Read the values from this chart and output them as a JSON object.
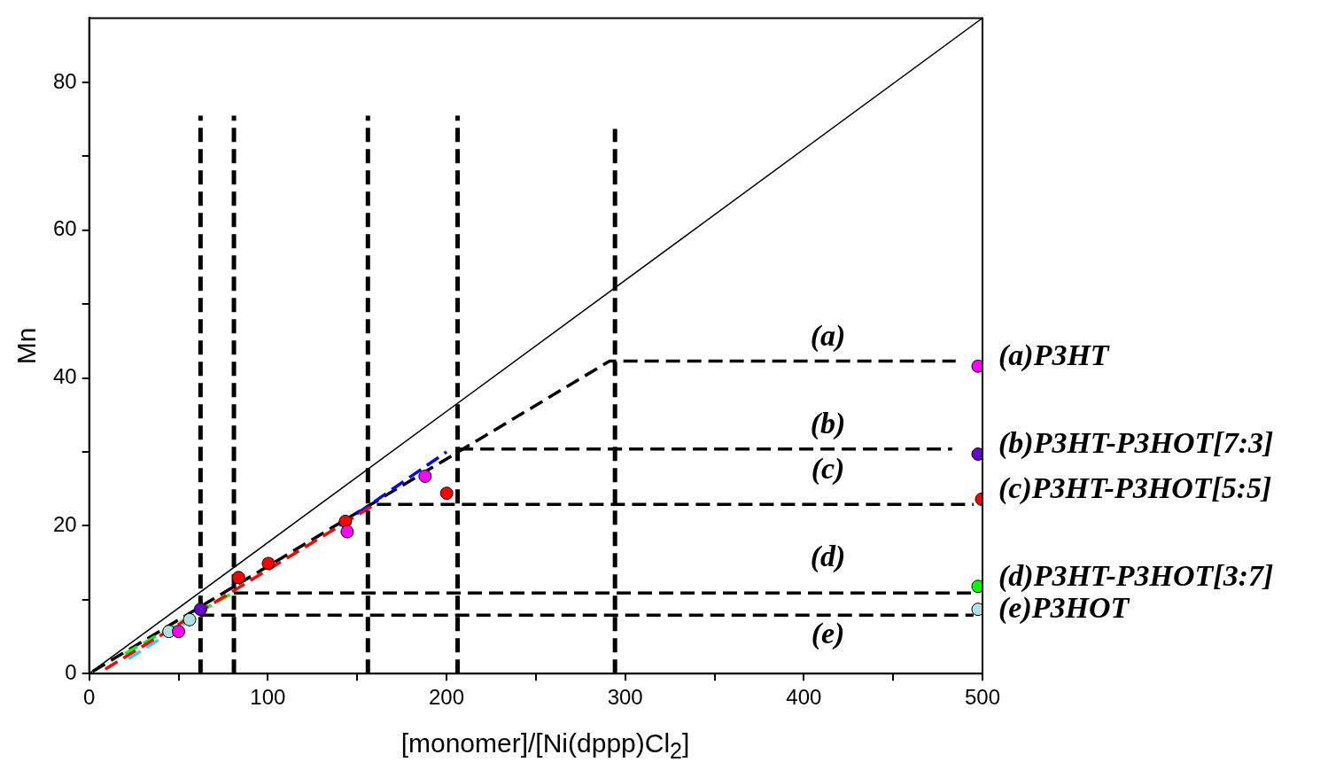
{
  "chart_data": {
    "type": "scatter",
    "xlabel": "[monomer]/[Ni(dppp)Cl$_{2}$]",
    "ylabel": "Mn",
    "xlim": [
      0,
      500
    ],
    "ylim": [
      0,
      88.7
    ],
    "xticks": [
      0,
      {
        "value": 50,
        "label": null
      },
      100,
      {
        "value": 150,
        "label": null
      },
      200,
      {
        "value": 250,
        "label": null
      },
      300,
      {
        "value": 350,
        "label": null
      },
      400,
      {
        "value": 450,
        "label": null
      },
      500
    ],
    "yticks": [
      0,
      {
        "value": 10,
        "label": null
      },
      20,
      {
        "value": 30,
        "label": null
      },
      40,
      {
        "value": 50,
        "label": null
      },
      60,
      {
        "value": 70,
        "label": null
      },
      80
    ],
    "grid": false,
    "legend": false,
    "marker": "circle",
    "series": [
      {
        "type": "line",
        "color": "#000000",
        "line_style": "solid",
        "marker": "none",
        "x": [
          0,
          500
        ],
        "values": [
          0,
          88.7
        ]
      },
      {
        "type": "line",
        "color": "#000000",
        "line_style": "dashed",
        "marker": "none",
        "x": [
          62.3,
          62.3
        ],
        "values": [
          0,
          75.5
        ]
      },
      {
        "type": "line",
        "color": "#000000",
        "line_style": "dashed",
        "marker": "none",
        "x": [
          81,
          81
        ],
        "values": [
          0,
          75.5
        ]
      },
      {
        "type": "line",
        "color": "#000000",
        "line_style": "dashed",
        "marker": "none",
        "x": [
          156,
          156
        ],
        "values": [
          0,
          75.5
        ]
      },
      {
        "type": "line",
        "color": "#000000",
        "line_style": "dashed",
        "marker": "none",
        "x": [
          206.2,
          206.2
        ],
        "values": [
          0,
          75.5
        ]
      },
      {
        "type": "line",
        "color": "#000000",
        "line_style": "dashed",
        "marker": "none",
        "x": [
          294.3,
          294.3
        ],
        "values": [
          0,
          73.7
        ]
      },
      {
        "type": "line",
        "color": "#ff0000",
        "line_style": "dashed",
        "marker": "none",
        "x": [
          9,
          160
        ],
        "values": [
          0.6,
          22.9
        ]
      },
      {
        "type": "line",
        "color": "#00ff00",
        "line_style": "dashed",
        "marker": "none",
        "x": [
          20,
          81
        ],
        "values": [
          2.7,
          11
        ]
      },
      {
        "type": "line",
        "color": "#33ccff",
        "line_style": "dashed",
        "marker": "none",
        "x": [
          22,
          58
        ],
        "values": [
          2,
          7.5
        ]
      },
      {
        "type": "line",
        "color": "#0000ff",
        "line_style": "dashed",
        "marker": "none",
        "x": [
          140,
          200
        ],
        "values": [
          20,
          30
        ]
      },
      {
        "type": "line",
        "color": "#000000",
        "line_style": "dashed",
        "marker": "none",
        "x": [
          2,
          291.3,
          485
        ],
        "values": [
          0.3,
          42.3,
          42.3
        ]
      },
      {
        "type": "line",
        "color": "#000000",
        "line_style": "dashed",
        "marker": "none",
        "x": [
          207,
          483
        ],
        "values": [
          30.4,
          30.4
        ]
      },
      {
        "type": "line",
        "color": "#000000",
        "line_style": "dashed",
        "marker": "none",
        "x": [
          161,
          495
        ],
        "values": [
          22.9,
          22.9
        ]
      },
      {
        "type": "line",
        "color": "#000000",
        "line_style": "dashed",
        "marker": "none",
        "x": [
          81,
          495
        ],
        "values": [
          10.9,
          10.9
        ]
      },
      {
        "type": "line",
        "color": "#000000",
        "line_style": "dashed",
        "marker": "none",
        "x": [
          62,
          495
        ],
        "values": [
          7.9,
          7.9
        ]
      },
      {
        "type": "scatter",
        "name": "(a)P3HT",
        "color": "#ff00ff",
        "x": [
          50,
          144.4,
          188,
          497.5
        ],
        "values": [
          5.7,
          19.2,
          26.7,
          41.6
        ]
      },
      {
        "type": "scatter",
        "name": "(b)P3HT-P3HOT[7:3]",
        "color": "#6600cc",
        "x": [
          62.3,
          497.5
        ],
        "values": [
          8.7,
          29.7
        ]
      },
      {
        "type": "scatter",
        "name": "(c)P3HT-P3HOT[5:5]",
        "color": "#ff0000",
        "x": [
          83.6,
          100.3,
          143.4,
          200.1,
          499.5
        ],
        "values": [
          13,
          14.9,
          20.6,
          24.4,
          23.6
        ]
      },
      {
        "type": "scatter",
        "name": "(d)P3HT-P3HOT[3:7]",
        "color": "#00ff00",
        "x": [
          497.5
        ],
        "values": [
          11.8
        ]
      },
      {
        "type": "scatter",
        "name": "(e)P3HOT",
        "color": "#b0e0e0",
        "x": [
          44.6,
          56.2,
          497.5
        ],
        "values": [
          5.7,
          7.3,
          8.7
        ]
      }
    ],
    "annotations": [
      "(a)",
      "(b)",
      "(c)",
      "(d)",
      "(e)"
    ]
  }
}
